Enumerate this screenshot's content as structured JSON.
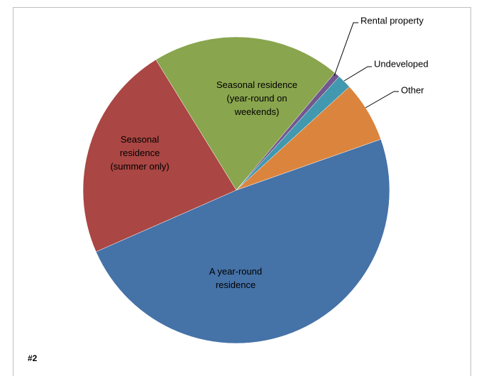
{
  "chart_data": {
    "type": "pie",
    "categories": [
      "A year-round residence",
      "Seasonal residence (summer only)",
      "Seasonal residence (year-round on weekends)",
      "Rental property",
      "Undeveloped",
      "Other"
    ],
    "values": [
      48.8,
      22.8,
      19.9,
      0.6,
      1.5,
      6.4
    ],
    "colors": [
      "#4572a7",
      "#aa4643",
      "#89a54e",
      "#71588f",
      "#4198af",
      "#db843d"
    ],
    "label": "#2"
  }
}
